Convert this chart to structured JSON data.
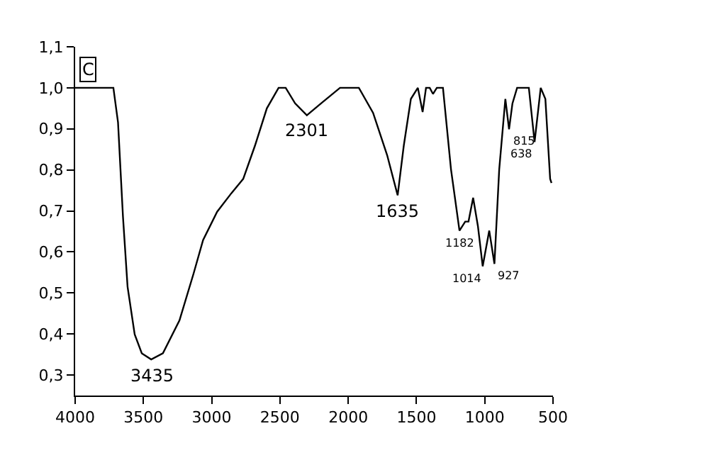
{
  "chart_data": {
    "type": "line",
    "color": "#000000",
    "xlim": [
      4000,
      500
    ],
    "xticks": [
      4000,
      3500,
      3000,
      2500,
      2000,
      1500,
      1000,
      500
    ],
    "ylim": [
      0.25,
      1.1
    ],
    "yticks": [
      {
        "value": 0.3,
        "label": "0,3"
      },
      {
        "value": 0.4,
        "label": "0,4"
      },
      {
        "value": 0.5,
        "label": "0,5"
      },
      {
        "value": 0.6,
        "label": "0,6"
      },
      {
        "value": 0.7,
        "label": "0,7"
      },
      {
        "value": 0.8,
        "label": "0,8"
      },
      {
        "value": 0.9,
        "label": "0,9"
      },
      {
        "value": 1.0,
        "label": "1,0"
      },
      {
        "value": 1.1,
        "label": "1,1"
      }
    ],
    "grid": false,
    "marker": "none",
    "line_style": "solid",
    "x": [
      4000,
      3720,
      3686,
      3650,
      3616,
      3564,
      3512,
      3443,
      3357,
      3236,
      3132,
      3063,
      2960,
      2856,
      2769,
      2683,
      2596,
      2510,
      2458,
      2389,
      2303,
      2199,
      2060,
      1922,
      1818,
      1715,
      1638,
      1593,
      1541,
      1490,
      1455,
      1430,
      1403,
      1379,
      1351,
      1306,
      1247,
      1185,
      1143,
      1119,
      1085,
      1050,
      1015,
      967,
      929,
      894,
      849,
      822,
      797,
      763,
      677,
      635,
      590,
      556,
      521,
      511
    ],
    "values": [
      1.0,
      1.0,
      0.916,
      0.687,
      0.515,
      0.399,
      0.353,
      0.338,
      0.353,
      0.433,
      0.548,
      0.629,
      0.698,
      0.743,
      0.778,
      0.859,
      0.95,
      1.0,
      1.0,
      0.962,
      0.933,
      0.962,
      1.0,
      1.0,
      0.939,
      0.836,
      0.738,
      0.859,
      0.973,
      1.0,
      0.941,
      1.0,
      1.0,
      0.985,
      1.0,
      1.0,
      0.801,
      0.652,
      0.674,
      0.674,
      0.732,
      0.663,
      0.565,
      0.652,
      0.571,
      0.801,
      0.973,
      0.899,
      0.962,
      1.0,
      1.0,
      0.868,
      1.0,
      0.973,
      0.778,
      0.768
    ],
    "annotations": [
      "C",
      {
        "text": "3435",
        "x": 3435,
        "y": 0.338
      },
      {
        "text": "2301",
        "x": 2301,
        "y": 0.933
      },
      {
        "text": "1635",
        "x": 1635,
        "y": 0.738
      },
      {
        "text": "1182",
        "x": 1182,
        "y": 0.652
      },
      {
        "text": "1014",
        "x": 1014,
        "y": 0.565
      },
      {
        "text": "927",
        "x": 927,
        "y": 0.571
      },
      {
        "text": "815",
        "x": 815,
        "y": 0.899
      },
      {
        "text": "638",
        "x": 638,
        "y": 0.868
      }
    ]
  }
}
